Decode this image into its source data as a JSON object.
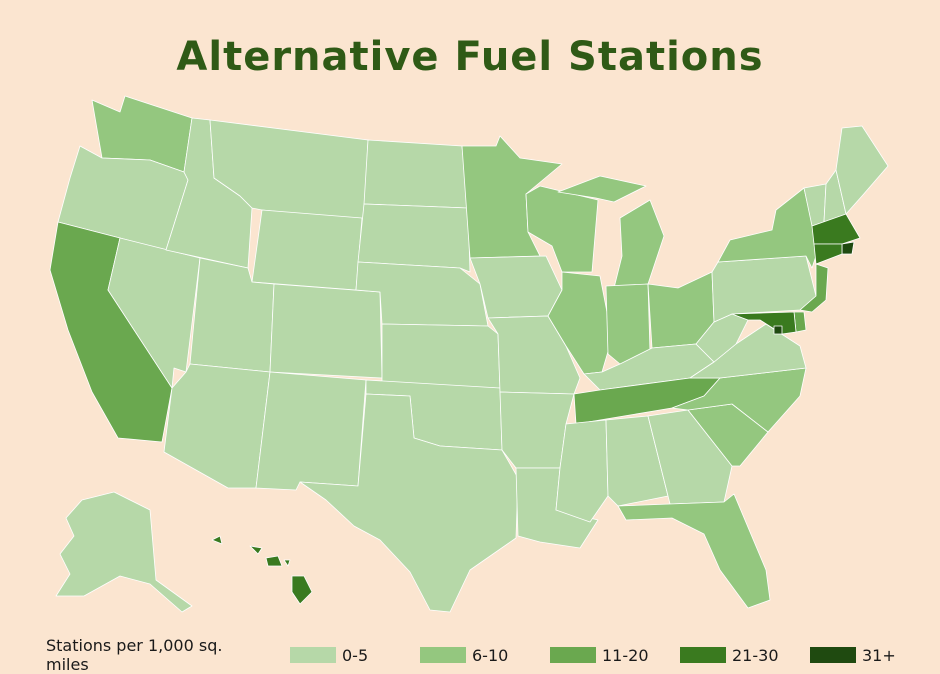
{
  "title": "Alternative Fuel Stations",
  "legend": {
    "title": "Stations per 1,000 sq. miles",
    "items": [
      {
        "label": "0-5",
        "color": "#b6d8a8"
      },
      {
        "label": "6-10",
        "color": "#94c77f"
      },
      {
        "label": "11-20",
        "color": "#6aa84f"
      },
      {
        "label": "21-30",
        "color": "#3a7a1f"
      },
      {
        "label": "31+",
        "color": "#1f4a10"
      }
    ]
  },
  "states": [
    {
      "name": "WA",
      "class": "6-10"
    },
    {
      "name": "OR",
      "class": "0-5"
    },
    {
      "name": "CA",
      "class": "11-20"
    },
    {
      "name": "NV",
      "class": "0-5"
    },
    {
      "name": "ID",
      "class": "0-5"
    },
    {
      "name": "MT",
      "class": "0-5"
    },
    {
      "name": "WY",
      "class": "0-5"
    },
    {
      "name": "UT",
      "class": "0-5"
    },
    {
      "name": "AZ",
      "class": "0-5"
    },
    {
      "name": "CO",
      "class": "0-5"
    },
    {
      "name": "NM",
      "class": "0-5"
    },
    {
      "name": "ND",
      "class": "0-5"
    },
    {
      "name": "SD",
      "class": "0-5"
    },
    {
      "name": "NE",
      "class": "0-5"
    },
    {
      "name": "KS",
      "class": "0-5"
    },
    {
      "name": "OK",
      "class": "0-5"
    },
    {
      "name": "TX",
      "class": "0-5"
    },
    {
      "name": "MN",
      "class": "6-10"
    },
    {
      "name": "IA",
      "class": "0-5"
    },
    {
      "name": "MO",
      "class": "0-5"
    },
    {
      "name": "AR",
      "class": "0-5"
    },
    {
      "name": "LA",
      "class": "0-5"
    },
    {
      "name": "WI",
      "class": "6-10"
    },
    {
      "name": "IL",
      "class": "6-10"
    },
    {
      "name": "MI",
      "class": "6-10"
    },
    {
      "name": "IN",
      "class": "6-10"
    },
    {
      "name": "OH",
      "class": "6-10"
    },
    {
      "name": "KY",
      "class": "0-5"
    },
    {
      "name": "TN",
      "class": "11-20"
    },
    {
      "name": "MS",
      "class": "0-5"
    },
    {
      "name": "AL",
      "class": "0-5"
    },
    {
      "name": "GA",
      "class": "0-5"
    },
    {
      "name": "FL",
      "class": "6-10"
    },
    {
      "name": "SC",
      "class": "6-10"
    },
    {
      "name": "NC",
      "class": "6-10"
    },
    {
      "name": "VA",
      "class": "0-5"
    },
    {
      "name": "WV",
      "class": "0-5"
    },
    {
      "name": "PA",
      "class": "0-5"
    },
    {
      "name": "NY",
      "class": "6-10"
    },
    {
      "name": "VT",
      "class": "0-5"
    },
    {
      "name": "NH",
      "class": "0-5"
    },
    {
      "name": "ME",
      "class": "0-5"
    },
    {
      "name": "MA",
      "class": "21-30"
    },
    {
      "name": "RI",
      "class": "31+"
    },
    {
      "name": "CT",
      "class": "21-30"
    },
    {
      "name": "NJ",
      "class": "11-20"
    },
    {
      "name": "DE",
      "class": "11-20"
    },
    {
      "name": "MD",
      "class": "21-30"
    },
    {
      "name": "DC",
      "class": "31+"
    },
    {
      "name": "AK",
      "class": "0-5"
    },
    {
      "name": "HI",
      "class": "21-30"
    }
  ]
}
